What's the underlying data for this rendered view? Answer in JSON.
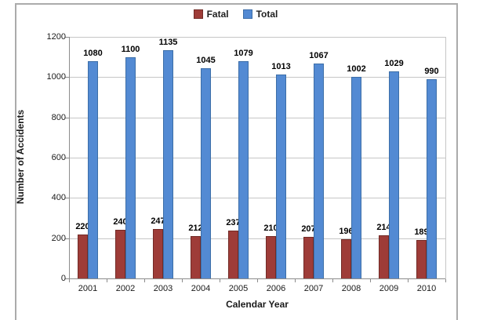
{
  "chart_data": {
    "type": "bar",
    "categories": [
      "2001",
      "2002",
      "2003",
      "2004",
      "2005",
      "2006",
      "2007",
      "2008",
      "2009",
      "2010"
    ],
    "series": [
      {
        "name": "Fatal",
        "color": "#9e3c38",
        "border_color": "#722b27",
        "values": [
          220,
          240,
          247,
          212,
          237,
          210,
          207,
          196,
          214,
          189
        ]
      },
      {
        "name": "Total",
        "color": "#538ad3",
        "border_color": "#3c6ea8",
        "values": [
          1080,
          1100,
          1135,
          1045,
          1079,
          1013,
          1067,
          1002,
          1029,
          990
        ]
      }
    ],
    "xlabel": "Calendar Year",
    "ylabel": "Number of Accidents",
    "ylim": [
      0,
      1200
    ],
    "yticks": [
      0,
      200,
      400,
      600,
      800,
      1000,
      1200
    ],
    "grid": true,
    "legend_position": "top-center",
    "data_labels": true,
    "gridline_color": "#c6c6c6",
    "axis_color": "#8c8c8c",
    "frame_border_color": "#ababab"
  }
}
